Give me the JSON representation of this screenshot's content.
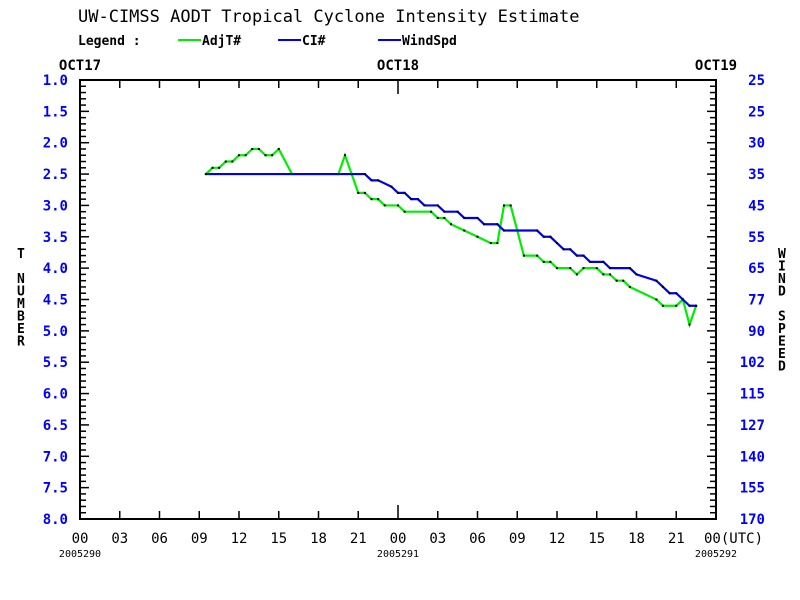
{
  "chart_data": {
    "type": "line",
    "title": "UW-CIMSS AODT Tropical Cyclone Intensity Estimate",
    "legend_label": "Legend :",
    "legend_placement": "top",
    "date_labels_top": [
      "OCT17",
      "OCT18",
      "OCT19"
    ],
    "x_tick_labels": [
      "00",
      "03",
      "06",
      "09",
      "12",
      "15",
      "18",
      "21",
      "00",
      "03",
      "06",
      "09",
      "12",
      "15",
      "18",
      "21",
      "00(UTC)"
    ],
    "x_date_labels": [
      "2005290",
      "2005291",
      "2005292"
    ],
    "xlim": [
      "2005290 00:00",
      "2005292 00:00"
    ],
    "ylabel_left": "T NUMBER",
    "ylabel_right": "WIND SPEED",
    "ylim": [
      1.0,
      8.0
    ],
    "y_inverted": true,
    "y_tick_labels_left": [
      "1.0",
      "1.5",
      "2.0",
      "2.5",
      "3.0",
      "3.5",
      "4.0",
      "4.5",
      "5.0",
      "5.5",
      "6.0",
      "6.5",
      "7.0",
      "7.5",
      "8.0"
    ],
    "y_tick_labels_right": [
      "25",
      "25",
      "30",
      "35",
      "45",
      "55",
      "65",
      "77",
      "90",
      "102",
      "115",
      "127",
      "140",
      "155",
      "170"
    ],
    "grid": false,
    "colors": {
      "title": "#000000",
      "axis": "#000000",
      "tick_labels": "#0000ff",
      "adjt": "#00ee00",
      "ci": "#0000ee",
      "windspd": "#0000ee",
      "markers": "#000000"
    },
    "series": [
      {
        "name": "AdjT#",
        "color": "#00ee00",
        "points": [
          [
            "2005290 09:30",
            2.5
          ],
          [
            "2005290 10:00",
            2.4
          ],
          [
            "2005290 10:30",
            2.4
          ],
          [
            "2005290 11:00",
            2.3
          ],
          [
            "2005290 11:30",
            2.3
          ],
          [
            "2005290 12:00",
            2.2
          ],
          [
            "2005290 12:30",
            2.2
          ],
          [
            "2005290 13:00",
            2.1
          ],
          [
            "2005290 13:30",
            2.1
          ],
          [
            "2005290 14:00",
            2.2
          ],
          [
            "2005290 14:30",
            2.2
          ],
          [
            "2005290 15:00",
            2.1
          ],
          [
            "2005290 16:00",
            2.5
          ],
          [
            "2005290 19:30",
            2.5
          ],
          [
            "2005290 20:00",
            2.2
          ],
          [
            "2005290 20:30",
            2.5
          ],
          [
            "2005290 21:00",
            2.8
          ],
          [
            "2005290 21:30",
            2.8
          ],
          [
            "2005290 22:00",
            2.9
          ],
          [
            "2005290 22:30",
            2.9
          ],
          [
            "2005290 23:00",
            3.0
          ],
          [
            "2005291 00:00",
            3.0
          ],
          [
            "2005291 00:30",
            3.1
          ],
          [
            "2005291 02:30",
            3.1
          ],
          [
            "2005291 03:00",
            3.2
          ],
          [
            "2005291 03:30",
            3.2
          ],
          [
            "2005291 04:00",
            3.3
          ],
          [
            "2005291 05:00",
            3.4
          ],
          [
            "2005291 06:00",
            3.5
          ],
          [
            "2005291 07:00",
            3.6
          ],
          [
            "2005291 07:30",
            3.6
          ],
          [
            "2005291 08:00",
            3.0
          ],
          [
            "2005291 08:30",
            3.0
          ],
          [
            "2005291 09:30",
            3.8
          ],
          [
            "2005291 10:30",
            3.8
          ],
          [
            "2005291 11:00",
            3.9
          ],
          [
            "2005291 11:30",
            3.9
          ],
          [
            "2005291 12:00",
            4.0
          ],
          [
            "2005291 13:00",
            4.0
          ],
          [
            "2005291 13:30",
            4.1
          ],
          [
            "2005291 14:00",
            4.0
          ],
          [
            "2005291 15:00",
            4.0
          ],
          [
            "2005291 15:30",
            4.1
          ],
          [
            "2005291 16:00",
            4.1
          ],
          [
            "2005291 16:30",
            4.2
          ],
          [
            "2005291 17:00",
            4.2
          ],
          [
            "2005291 17:30",
            4.3
          ],
          [
            "2005291 19:30",
            4.5
          ],
          [
            "2005291 20:00",
            4.6
          ],
          [
            "2005291 21:00",
            4.6
          ],
          [
            "2005291 21:30",
            4.5
          ],
          [
            "2005291 22:00",
            4.9
          ],
          [
            "2005291 22:30",
            4.6
          ]
        ]
      },
      {
        "name": "CI#",
        "color": "#0000ee",
        "points": [
          [
            "2005290 09:30",
            2.5
          ],
          [
            "2005290 21:30",
            2.5
          ],
          [
            "2005290 22:00",
            2.6
          ],
          [
            "2005290 22:30",
            2.6
          ],
          [
            "2005290 23:30",
            2.7
          ],
          [
            "2005291 00:00",
            2.8
          ],
          [
            "2005291 00:30",
            2.8
          ],
          [
            "2005291 01:00",
            2.9
          ],
          [
            "2005291 01:30",
            2.9
          ],
          [
            "2005291 02:00",
            3.0
          ],
          [
            "2005291 03:00",
            3.0
          ],
          [
            "2005291 03:30",
            3.1
          ],
          [
            "2005291 04:30",
            3.1
          ],
          [
            "2005291 05:00",
            3.2
          ],
          [
            "2005291 06:00",
            3.2
          ],
          [
            "2005291 06:30",
            3.3
          ],
          [
            "2005291 07:30",
            3.3
          ],
          [
            "2005291 08:00",
            3.4
          ],
          [
            "2005291 10:30",
            3.4
          ],
          [
            "2005291 11:00",
            3.5
          ],
          [
            "2005291 11:30",
            3.5
          ],
          [
            "2005291 12:00",
            3.6
          ],
          [
            "2005291 12:30",
            3.7
          ],
          [
            "2005291 13:00",
            3.7
          ],
          [
            "2005291 13:30",
            3.8
          ],
          [
            "2005291 14:00",
            3.8
          ],
          [
            "2005291 14:30",
            3.9
          ],
          [
            "2005291 15:30",
            3.9
          ],
          [
            "2005291 16:00",
            4.0
          ],
          [
            "2005291 17:30",
            4.0
          ],
          [
            "2005291 18:00",
            4.1
          ],
          [
            "2005291 19:30",
            4.2
          ],
          [
            "2005291 20:00",
            4.3
          ],
          [
            "2005291 20:30",
            4.4
          ],
          [
            "2005291 21:00",
            4.4
          ],
          [
            "2005291 21:30",
            4.5
          ],
          [
            "2005291 22:00",
            4.6
          ],
          [
            "2005291 22:30",
            4.6
          ]
        ]
      },
      {
        "name": "WindSpd",
        "color": "#0000ee",
        "points": []
      }
    ]
  }
}
